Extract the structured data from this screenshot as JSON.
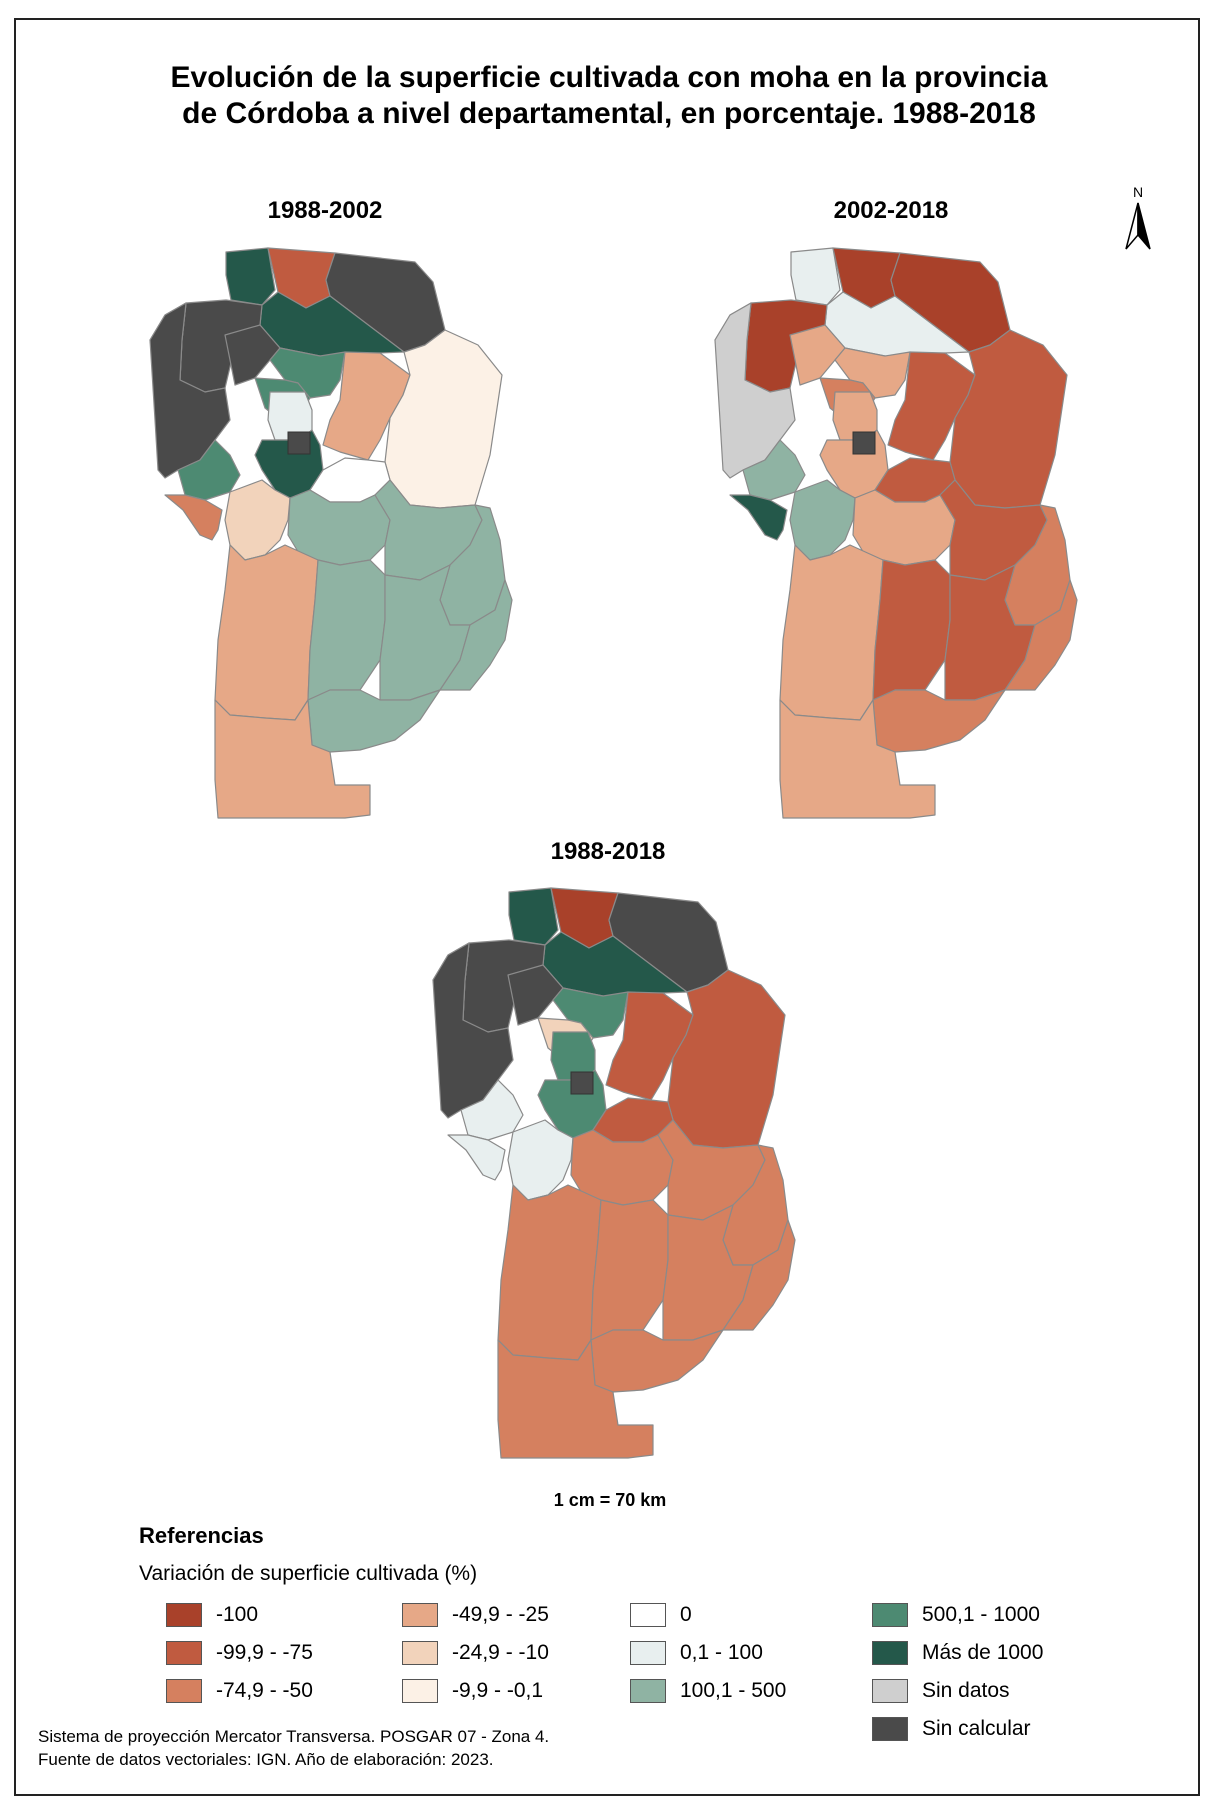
{
  "title": {
    "line1": "Evolución de la superficie cultivada con moha en la provincia",
    "line2": "de Córdoba a nivel departamental, en porcentaje. 1988-2018"
  },
  "maps": [
    {
      "label": "1988-2002"
    },
    {
      "label": "2002-2018"
    },
    {
      "label": "1988-2018"
    }
  ],
  "north_label": "N",
  "scale": "1 cm = 70 km",
  "legend": {
    "title": "Referencias",
    "subtitle": "Variación de superficie cultivada (%)",
    "classes": [
      {
        "label": "-100",
        "color": "#a9412a"
      },
      {
        "label": "-99,9 - -75",
        "color": "#c05b40"
      },
      {
        "label": "-74,9 - -50",
        "color": "#d5805f"
      },
      {
        "label": "-49,9 - -25",
        "color": "#e6a887"
      },
      {
        "label": "-24,9 - -10",
        "color": "#f2d3bb"
      },
      {
        "label": "-9,9 - -0,1",
        "color": "#fcf1e6"
      },
      {
        "label": "0",
        "color": "#ffffff"
      },
      {
        "label": "0,1 - 100",
        "color": "#e8efef"
      },
      {
        "label": "100,1 - 500",
        "color": "#8fb3a3"
      },
      {
        "label": "500,1 - 1000",
        "color": "#4d8a72"
      },
      {
        "label": "Más de 1000",
        "color": "#24584a"
      },
      {
        "label": "Sin datos",
        "color": "#cfcfcf"
      },
      {
        "label": "Sin calcular",
        "color": "#4a4a4a"
      }
    ]
  },
  "footer": {
    "line1": "Sistema de proyección Mercator Transversa. POSGAR 07 - Zona 4.",
    "line2": "Fuente de datos vectoriales: IGN. Año de elaboración: 2023."
  }
}
